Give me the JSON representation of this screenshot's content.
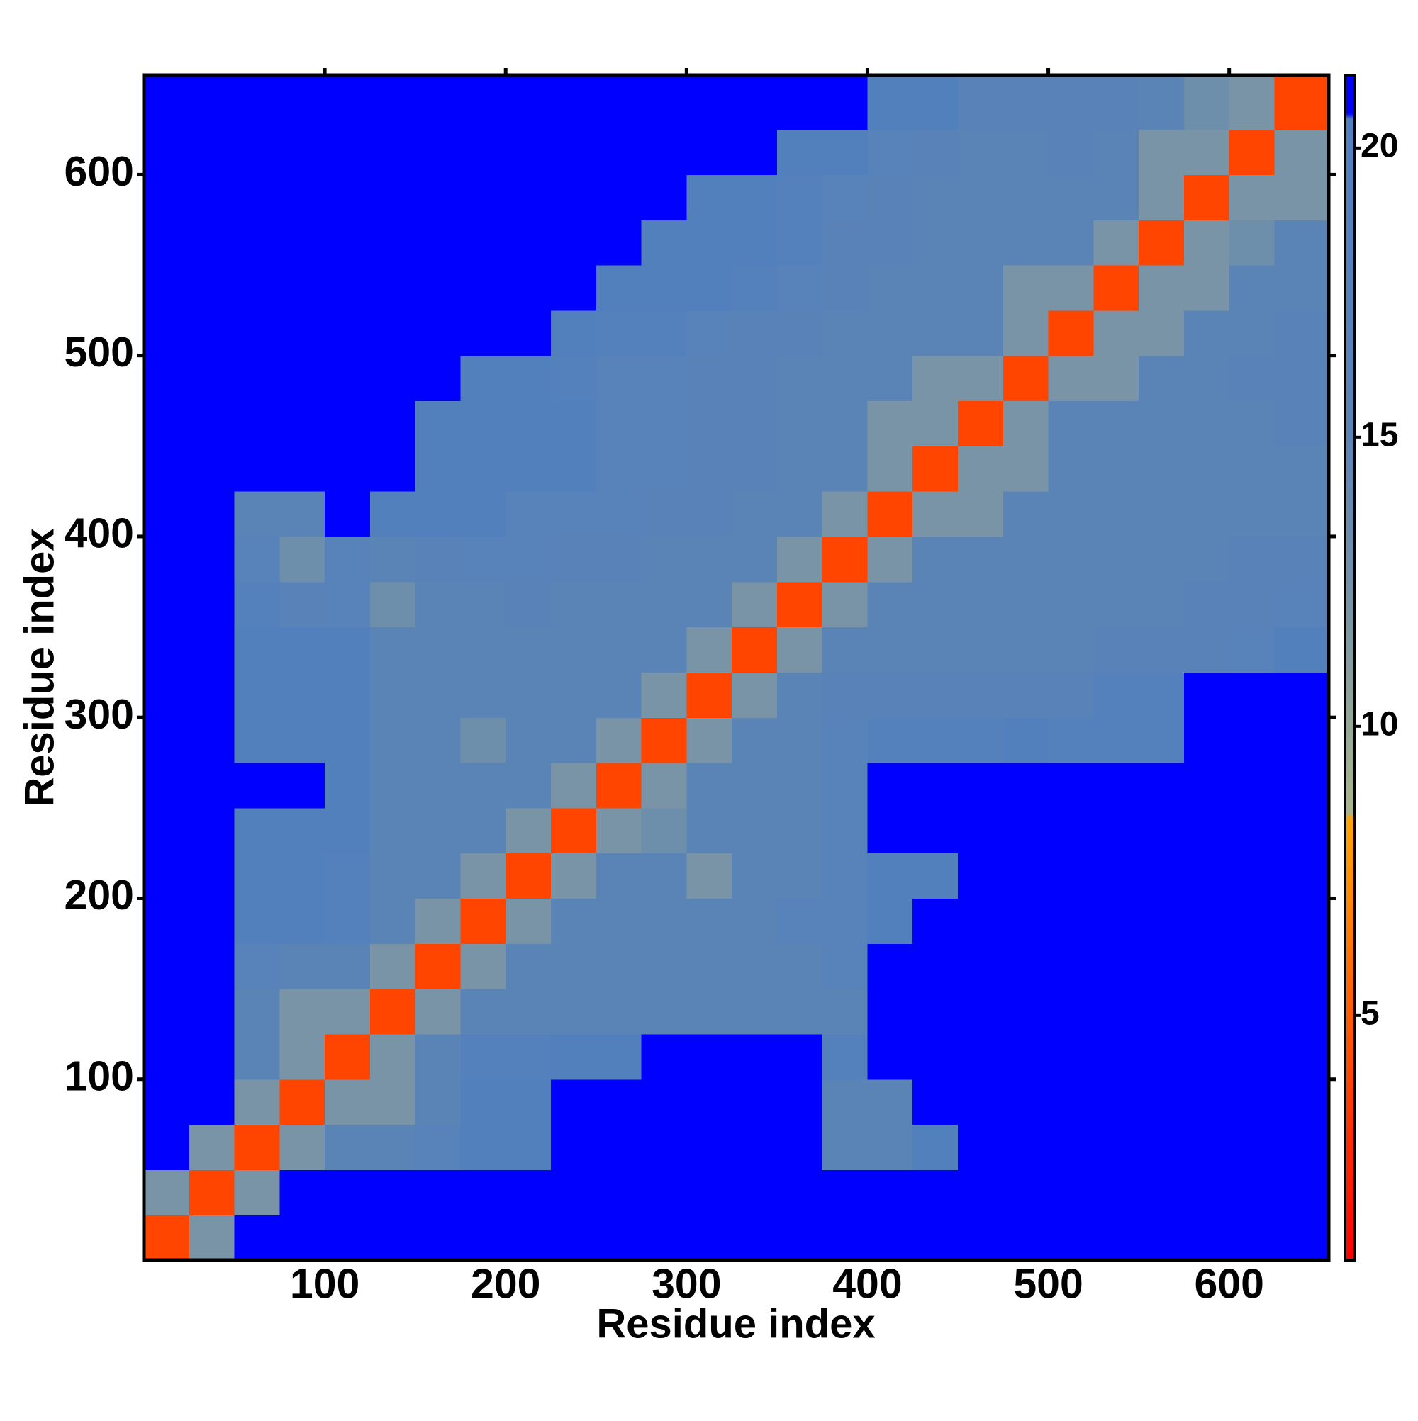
{
  "chart_data": {
    "type": "heatmap",
    "x_label": "Residue index",
    "y_label": "Residue index",
    "xlim": [
      0,
      655
    ],
    "ylim": [
      0,
      655
    ],
    "xticks": [
      100,
      200,
      300,
      400,
      500,
      600
    ],
    "yticks": [
      100,
      200,
      300,
      400,
      500,
      600
    ],
    "bins": [
      0,
      25,
      50,
      75,
      100,
      125,
      150,
      175,
      200,
      225,
      250,
      275,
      300,
      325,
      350,
      375,
      400,
      425,
      450,
      475,
      500,
      525,
      550,
      575,
      600,
      625,
      655
    ],
    "z": [
      [
        4,
        12,
        21,
        21,
        21,
        21,
        21,
        21,
        21,
        21,
        21,
        21,
        21,
        21,
        21,
        21,
        21,
        21,
        21,
        21,
        21,
        21,
        21,
        21,
        21,
        21
      ],
      [
        12,
        4,
        12,
        21,
        21,
        21,
        21,
        21,
        21,
        21,
        21,
        21,
        21,
        21,
        21,
        21,
        21,
        21,
        21,
        21,
        21,
        21,
        21,
        21,
        21,
        21
      ],
      [
        21,
        12,
        4,
        12,
        15,
        15,
        17,
        19,
        19,
        21,
        21,
        21,
        21,
        21,
        21,
        15,
        15,
        19,
        21,
        21,
        21,
        21,
        21,
        21,
        21,
        21
      ],
      [
        21,
        21,
        12,
        4,
        12,
        12,
        15,
        19,
        19,
        21,
        21,
        21,
        21,
        21,
        21,
        15,
        15,
        21,
        21,
        21,
        21,
        21,
        21,
        21,
        21,
        21
      ],
      [
        21,
        21,
        15,
        12,
        4,
        12,
        15,
        18,
        18,
        19,
        19,
        21,
        21,
        21,
        21,
        18,
        21,
        21,
        21,
        21,
        21,
        21,
        21,
        21,
        21,
        21
      ],
      [
        21,
        21,
        15,
        12,
        12,
        4,
        12,
        15,
        15,
        15,
        15,
        15,
        15,
        15,
        15,
        15,
        21,
        21,
        21,
        21,
        21,
        21,
        21,
        21,
        21,
        21
      ],
      [
        21,
        21,
        17,
        15,
        15,
        12,
        4,
        12,
        15,
        15,
        15,
        15,
        15,
        15,
        15,
        17,
        21,
        21,
        21,
        21,
        21,
        21,
        21,
        21,
        21,
        21
      ],
      [
        21,
        21,
        19,
        19,
        18,
        15,
        12,
        4,
        12,
        15,
        15,
        15,
        15,
        15,
        17,
        17,
        19,
        21,
        21,
        21,
        21,
        21,
        21,
        21,
        21,
        21
      ],
      [
        21,
        21,
        19,
        19,
        18,
        15,
        15,
        12,
        4,
        12,
        15,
        15,
        12,
        15,
        15,
        17,
        19,
        19,
        21,
        21,
        21,
        21,
        21,
        21,
        21,
        21
      ],
      [
        21,
        21,
        19,
        19,
        19,
        15,
        15,
        15,
        12,
        4,
        12,
        13,
        15,
        15,
        15,
        17,
        21,
        21,
        21,
        21,
        21,
        21,
        21,
        21,
        21,
        21
      ],
      [
        21,
        21,
        21,
        21,
        19,
        15,
        15,
        15,
        15,
        12,
        4,
        12,
        15,
        15,
        15,
        17,
        21,
        21,
        21,
        21,
        21,
        21,
        21,
        21,
        21,
        21
      ],
      [
        21,
        21,
        19,
        19,
        19,
        15,
        15,
        13,
        15,
        15,
        12,
        4,
        12,
        15,
        15,
        17,
        18,
        18,
        18,
        19,
        18,
        18,
        18,
        21,
        21,
        21
      ],
      [
        21,
        21,
        19,
        19,
        19,
        15,
        15,
        15,
        15,
        15,
        15,
        12,
        4,
        12,
        15,
        16,
        16,
        16,
        16,
        16,
        16,
        18,
        18,
        21,
        21,
        21
      ],
      [
        21,
        21,
        19,
        19,
        19,
        15,
        15,
        15,
        15,
        15,
        15,
        15,
        12,
        4,
        12,
        15,
        15,
        15,
        15,
        15,
        15,
        16,
        16,
        16,
        17,
        19
      ],
      [
        21,
        21,
        18,
        16,
        17,
        13,
        15,
        15,
        16,
        15,
        15,
        15,
        15,
        12,
        4,
        12,
        15,
        15,
        15,
        15,
        15,
        15,
        15,
        16,
        16,
        17
      ],
      [
        21,
        21,
        17,
        13,
        17,
        15,
        16,
        17,
        17,
        16,
        16,
        15,
        15,
        15,
        12,
        4,
        12,
        15,
        15,
        15,
        15,
        15,
        15,
        15,
        16,
        16
      ],
      [
        21,
        21,
        15,
        15,
        21,
        19,
        19,
        19,
        17,
        17,
        17,
        16,
        16,
        15,
        15,
        12,
        4,
        12,
        12,
        15,
        15,
        15,
        15,
        15,
        15,
        15
      ],
      [
        21,
        21,
        21,
        21,
        21,
        21,
        19,
        19,
        19,
        19,
        17,
        17,
        16,
        16,
        15,
        15,
        12,
        4,
        12,
        12,
        15,
        15,
        15,
        15,
        15,
        15
      ],
      [
        21,
        21,
        21,
        21,
        21,
        21,
        19,
        19,
        19,
        19,
        17,
        17,
        16,
        16,
        15,
        15,
        12,
        12,
        4,
        12,
        15,
        15,
        15,
        15,
        15,
        16
      ],
      [
        21,
        21,
        21,
        21,
        21,
        21,
        21,
        19,
        19,
        18,
        17,
        17,
        16,
        16,
        15,
        15,
        15,
        12,
        12,
        4,
        12,
        12,
        15,
        15,
        16,
        16
      ],
      [
        21,
        21,
        21,
        21,
        21,
        21,
        21,
        21,
        21,
        19,
        18,
        18,
        17,
        16,
        16,
        15,
        15,
        15,
        15,
        12,
        4,
        12,
        12,
        15,
        15,
        16
      ],
      [
        21,
        21,
        21,
        21,
        21,
        21,
        21,
        21,
        21,
        21,
        19,
        19,
        19,
        18,
        17,
        16,
        15,
        15,
        15,
        12,
        12,
        4,
        12,
        12,
        15,
        15
      ],
      [
        21,
        21,
        21,
        21,
        21,
        21,
        21,
        21,
        21,
        21,
        21,
        19,
        19,
        19,
        18,
        16,
        16,
        15,
        15,
        15,
        15,
        12,
        4,
        12,
        13,
        15
      ],
      [
        21,
        21,
        21,
        21,
        21,
        21,
        21,
        21,
        21,
        21,
        21,
        21,
        19,
        19,
        18,
        17,
        16,
        15,
        15,
        15,
        15,
        15,
        12,
        4,
        12,
        12
      ],
      [
        21,
        21,
        21,
        21,
        21,
        21,
        21,
        21,
        21,
        21,
        21,
        21,
        21,
        21,
        19,
        19,
        17,
        16,
        15,
        15,
        16,
        15,
        12,
        12,
        4,
        12
      ],
      [
        21,
        21,
        21,
        21,
        21,
        21,
        21,
        21,
        21,
        21,
        21,
        21,
        21,
        21,
        21,
        21,
        19,
        19,
        16,
        16,
        16,
        16,
        15,
        13,
        12,
        4
      ]
    ],
    "colorbar": {
      "lim": [
        0.77,
        21.26
      ],
      "ticks": [
        5,
        10,
        15,
        20
      ]
    },
    "colorscale": [
      [
        0.77,
        "#ff0000"
      ],
      [
        4,
        "#ff4500"
      ],
      [
        8.4,
        "#ffa500"
      ],
      [
        8.5,
        "#a9b58a"
      ],
      [
        12,
        "#7894a6"
      ],
      [
        15,
        "#5b84b6"
      ],
      [
        20.5,
        "#4f7fc0"
      ],
      [
        20.6,
        "#0000ff"
      ],
      [
        21.26,
        "#0000ff"
      ]
    ]
  }
}
